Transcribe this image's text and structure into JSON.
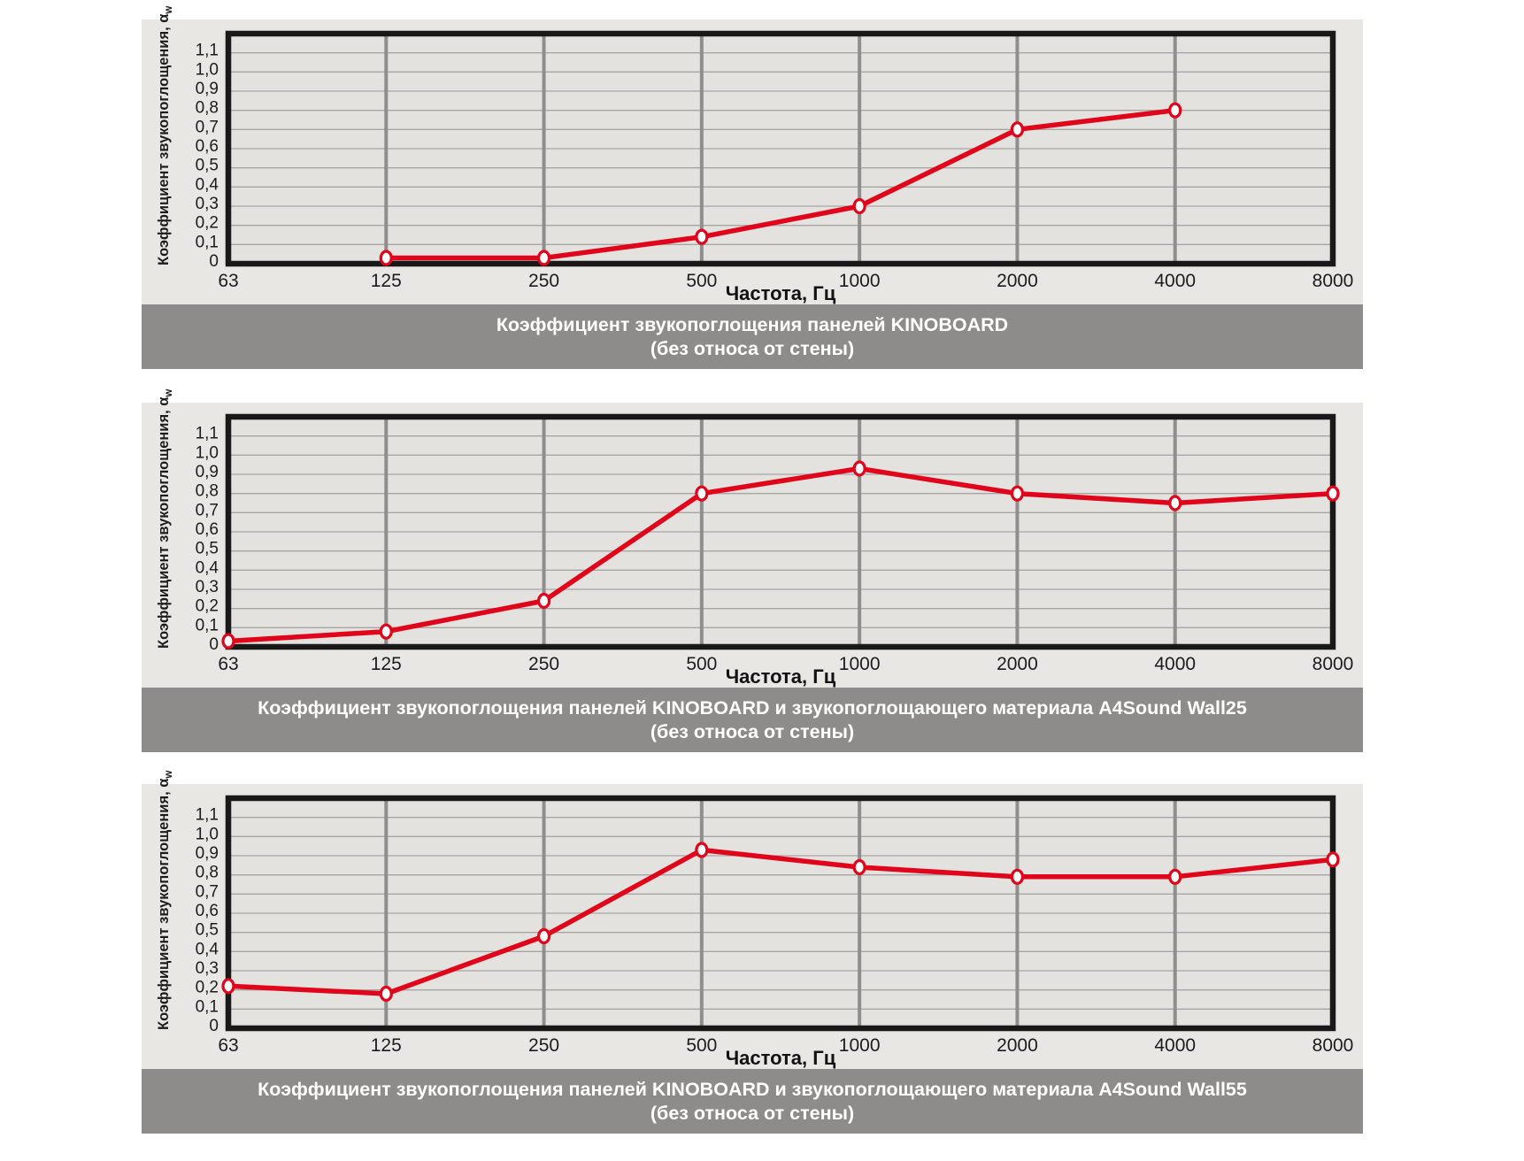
{
  "page": {
    "background": "#ffffff"
  },
  "axis": {
    "x_label": "Частота, Гц",
    "y_label": "Коэффициент звукопоглощения, α",
    "y_label_sub": "w",
    "x_ticks": [
      "63",
      "125",
      "250",
      "500",
      "1000",
      "2000",
      "4000",
      "8000"
    ],
    "y_ticks": [
      "0",
      "0,1",
      "0,2",
      "0,3",
      "0,4",
      "0,5",
      "0,6",
      "0,7",
      "0,8",
      "0,9",
      "1,0",
      "1,1"
    ]
  },
  "colors": {
    "panel_bg": "#e8e7e4",
    "plot_bg": "#e3e2df",
    "grid_h": "#a6a5a3",
    "grid_v": "#8f8e8c",
    "border": "#191919",
    "series": "#e0051a",
    "marker_fill": "#ffffff",
    "tick_text": "#1c1c1c",
    "caption_bg": "#8d8c8a",
    "caption_text": "#ffffff"
  },
  "chart_data": [
    {
      "type": "line",
      "title": "Коэффициент звукопоглощения панелей KINOBOARD",
      "subtitle": "(без относа от стены)",
      "xlabel": "Частота, Гц",
      "ylabel": "Коэффициент звукопоглощения, αw",
      "categories": [
        63,
        125,
        250,
        500,
        1000,
        2000,
        4000,
        8000
      ],
      "values": [
        null,
        0.03,
        0.03,
        0.14,
        0.3,
        0.7,
        0.8,
        null
      ],
      "ylim": [
        0,
        1.2
      ],
      "grid": true,
      "legend": false
    },
    {
      "type": "line",
      "title": "Коэффициент звукопоглощения панелей KINOBOARD и звукопоглощающего материала  A4Sound Wall25",
      "subtitle": "(без относа от стены)",
      "xlabel": "Частота, Гц",
      "ylabel": "Коэффициент звукопоглощения, αw",
      "categories": [
        63,
        125,
        250,
        500,
        1000,
        2000,
        4000,
        8000
      ],
      "values": [
        0.03,
        0.08,
        0.24,
        0.8,
        0.93,
        0.8,
        0.75,
        0.8
      ],
      "ylim": [
        0,
        1.2
      ],
      "grid": true,
      "legend": false
    },
    {
      "type": "line",
      "title": "Коэффициент звукопоглощения панелей KINOBOARD и звукопоглощающего материала  A4Sound Wall55",
      "subtitle": "(без относа от стены)",
      "xlabel": "Частота, Гц",
      "ylabel": "Коэффициент звукопоглощения, αw",
      "categories": [
        63,
        125,
        250,
        500,
        1000,
        2000,
        4000,
        8000
      ],
      "values": [
        0.22,
        0.18,
        0.48,
        0.93,
        0.84,
        0.79,
        0.79,
        0.88
      ],
      "ylim": [
        0,
        1.2
      ],
      "grid": true,
      "legend": false
    }
  ]
}
